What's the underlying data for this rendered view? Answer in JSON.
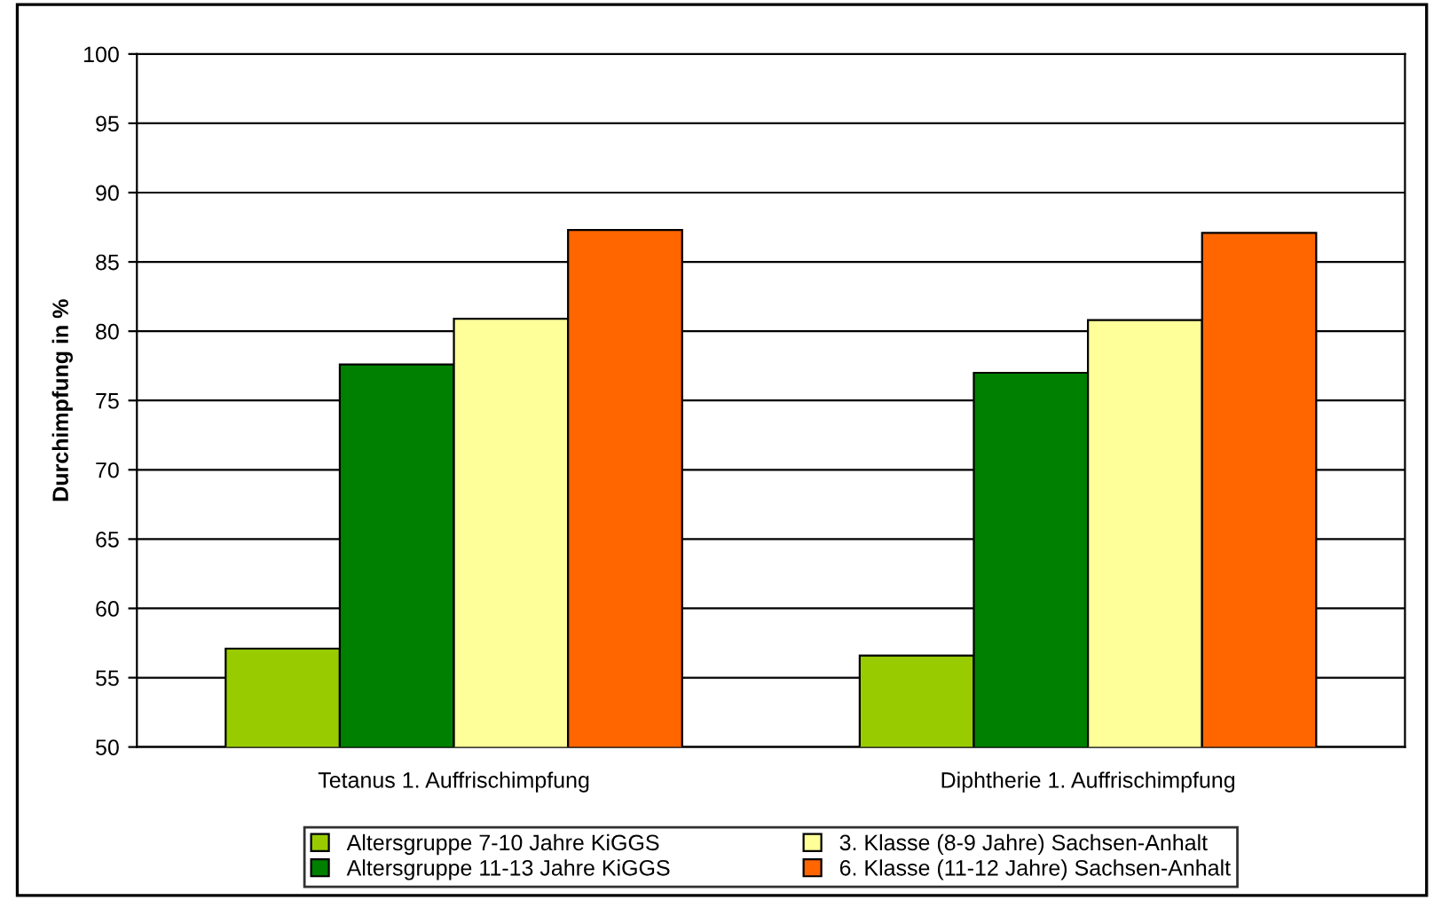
{
  "chart_data": {
    "type": "bar",
    "ylabel": "Durchimpfung in %",
    "categories": [
      "Tetanus 1. Auffrischimpfung",
      "Diphtherie 1. Auffrischimpfung"
    ],
    "series": [
      {
        "name": "Altersgruppe 7-10 Jahre KiGGS",
        "color": "#99cc00",
        "values": [
          57.1,
          56.6
        ]
      },
      {
        "name": "Altersgruppe 11-13 Jahre KiGGS",
        "color": "#008000",
        "values": [
          77.6,
          77.0
        ]
      },
      {
        "name": "3. Klasse (8-9 Jahre) Sachsen-Anhalt",
        "color": "#ffff99",
        "values": [
          80.9,
          80.8
        ]
      },
      {
        "name": "6. Klasse (11-12 Jahre) Sachsen-Anhalt",
        "color": "#ff6600",
        "values": [
          87.3,
          87.1
        ]
      }
    ],
    "ylim": [
      50,
      100
    ],
    "yticks": [
      50,
      55,
      60,
      65,
      70,
      75,
      80,
      85,
      90,
      95,
      100
    ],
    "grid": "y",
    "legend": "bottom"
  }
}
